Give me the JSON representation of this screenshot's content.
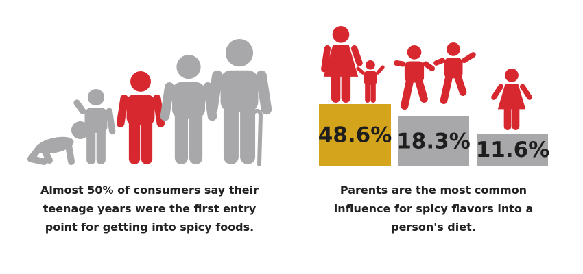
{
  "left": {
    "caption_lines": [
      "Almost 50% of consumers say their",
      "teenage years were the first entry",
      "point for getting into spicy foods."
    ]
  },
  "right": {
    "blocks": [
      {
        "label": "48.6%",
        "color": "#d4a51c"
      },
      {
        "label": "18.3%",
        "color": "#a8a8aa"
      },
      {
        "label": "11.6%",
        "color": "#a8a8aa"
      }
    ],
    "caption_lines": [
      "Parents are the most common",
      "influence for spicy flavors into a",
      "person's diet."
    ]
  }
}
